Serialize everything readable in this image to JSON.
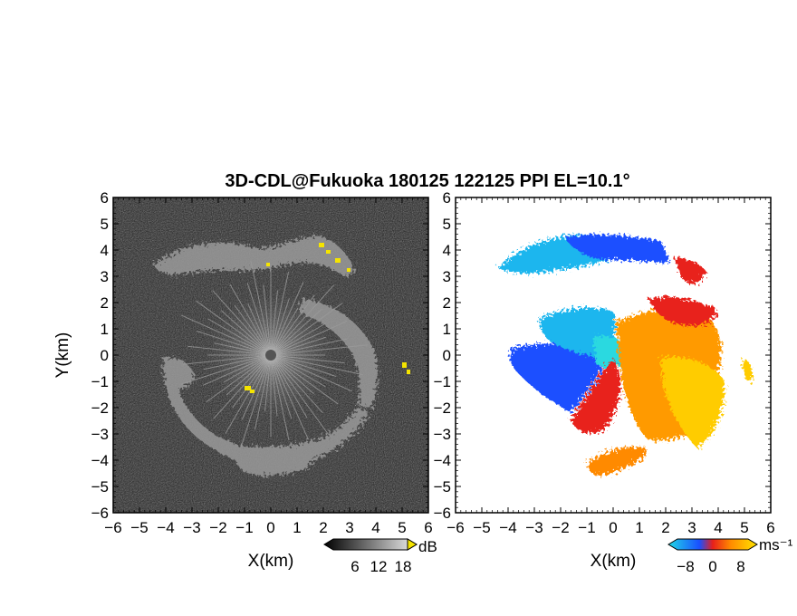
{
  "title": "3D-CDL@Fukuoka 180125 122125 PPI EL=10.1°",
  "colors": {
    "panel_left_bg": "#1e1e1e",
    "panel_right_bg": "#ffffff",
    "velocity_neg": "#1a4fff",
    "velocity_zero": "#2bd9e0",
    "velocity_pos": "#ffb400",
    "velocity_max": "#e8201a"
  },
  "chart_data": [
    {
      "type": "heatmap",
      "panel": "left",
      "xlabel": "X(km)",
      "ylabel": "Y(km)",
      "xlim": [
        -6,
        6
      ],
      "ylim": [
        -6,
        6
      ],
      "xticks": [
        "−6",
        "−5",
        "−4",
        "−3",
        "−2",
        "−1",
        "0",
        "1",
        "2",
        "3",
        "4",
        "5",
        "6"
      ],
      "yticks": [
        "6",
        "5",
        "4",
        "3",
        "2",
        "1",
        "0",
        "−1",
        "−2",
        "−3",
        "−4",
        "−5",
        "−6"
      ],
      "colorbar": {
        "unit": "dB",
        "ticks": [
          "6",
          "12",
          "18"
        ],
        "colormap": "grayscale-yellow"
      },
      "features": [
        {
          "name": "northern echo band",
          "x": [
            -4,
            3.3
          ],
          "y": [
            3.2,
            4.3
          ]
        },
        {
          "name": "southern ring",
          "x": [
            -4,
            4
          ],
          "y": [
            -5,
            -0.5
          ]
        }
      ]
    },
    {
      "type": "heatmap",
      "panel": "right",
      "xlabel": "X(km)",
      "xlim": [
        -6,
        6
      ],
      "ylim": [
        -6,
        6
      ],
      "xticks": [
        "−6",
        "−5",
        "−4",
        "−3",
        "−2",
        "−1",
        "0",
        "1",
        "2",
        "3",
        "4",
        "5",
        "6"
      ],
      "yticks": [
        "6",
        "5",
        "4",
        "3",
        "2",
        "1",
        "0",
        "−1",
        "−2",
        "−3",
        "−4",
        "−5",
        "−6"
      ],
      "colorbar": {
        "unit": "ms⁻¹",
        "ticks": [
          "−8",
          "0",
          "8"
        ],
        "colormap": "blue-cyan-orange-red"
      }
    }
  ]
}
